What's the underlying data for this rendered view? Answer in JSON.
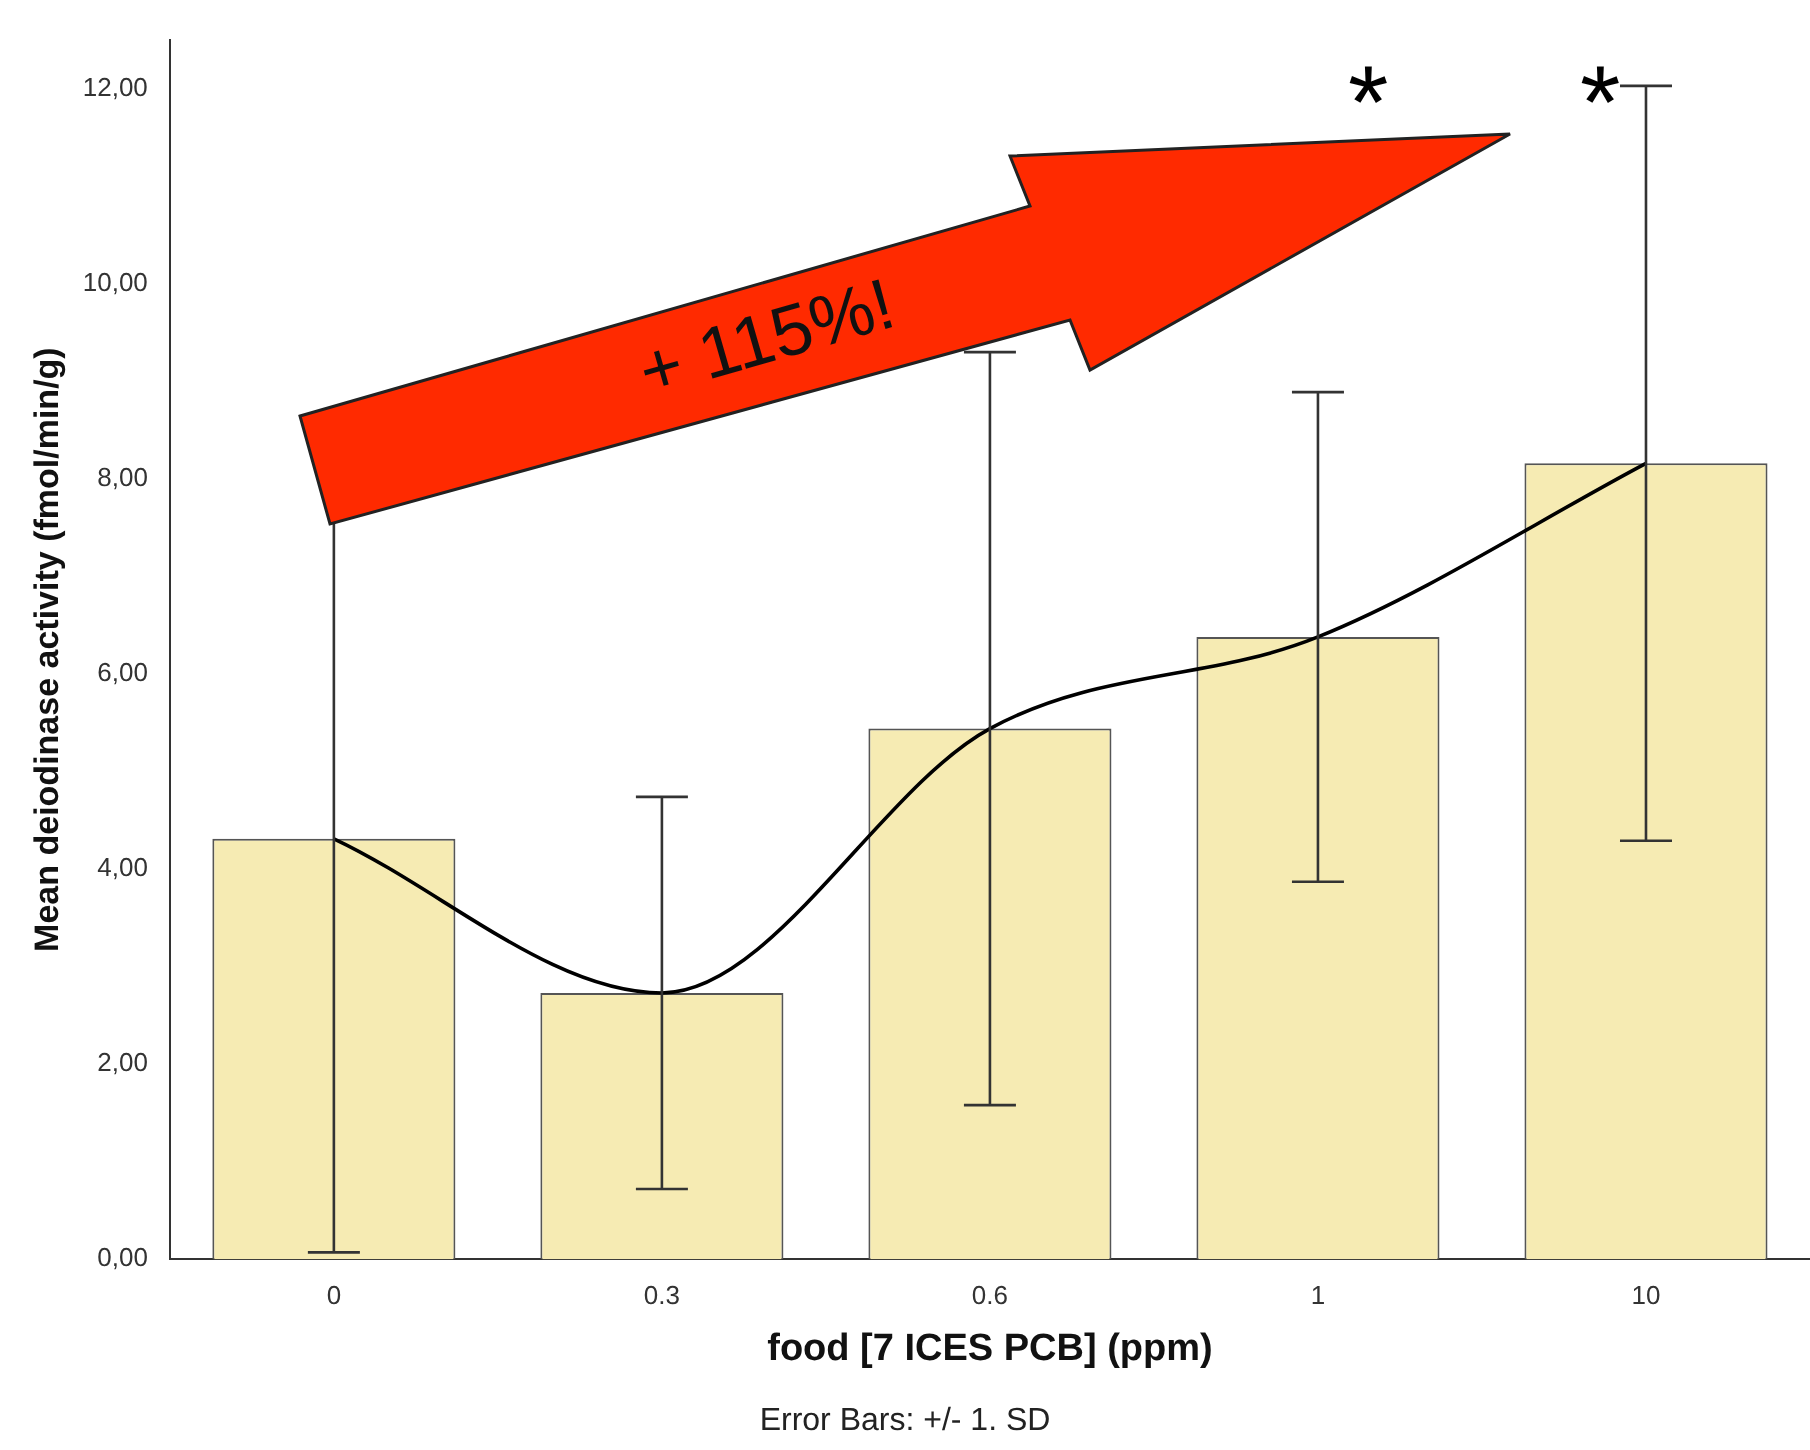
{
  "chart_data": {
    "type": "bar",
    "xlabel": "food [7 ICES PCB] (ppm)",
    "ylabel": "Mean deiodinase activity (fmol/min/g)",
    "categories": [
      "0",
      "0.3",
      "0.6",
      "1",
      "10"
    ],
    "series": [
      {
        "color": "#f6ebb3",
        "values": [
          4.31,
          2.73,
          5.44,
          6.38,
          8.16
        ],
        "errors": [
          4.24,
          2.01,
          3.86,
          2.51,
          3.87
        ]
      },
      {
        "type": "line",
        "color": "#000000",
        "x": [
          "0",
          "0.3",
          "0.6",
          "1",
          "10"
        ],
        "values": [
          4.31,
          2.73,
          5.44,
          6.38,
          8.16
        ]
      }
    ],
    "ylim": [
      0,
      12.5
    ],
    "yticks": [
      {
        "value": 0,
        "label": "0,00"
      },
      {
        "value": 2,
        "label": "2,00"
      },
      {
        "value": 4,
        "label": "4,00"
      },
      {
        "value": 6,
        "label": "6,00"
      },
      {
        "value": 8,
        "label": "8,00"
      },
      {
        "value": 10,
        "label": "10,00"
      },
      {
        "value": 12,
        "label": "12,00"
      }
    ],
    "grid": false,
    "legend": false,
    "marker": "none",
    "annotations": [
      "+ 115%!",
      "*",
      "*",
      "Error Bars: +/- 1. SD"
    ]
  }
}
